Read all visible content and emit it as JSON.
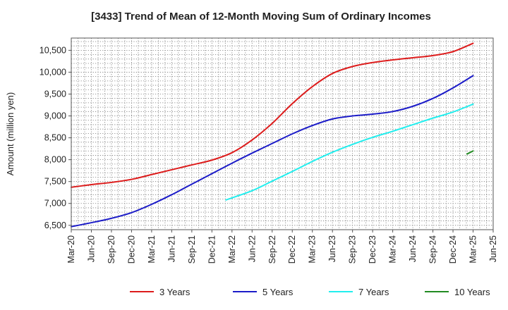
{
  "chart_data": {
    "type": "line",
    "title": "[3433]  Trend of Mean of 12-Month Moving Sum of Ordinary Incomes",
    "xlabel": "",
    "ylabel": "Amount (million yen)",
    "ylim": [
      6400,
      10780
    ],
    "yticks": [
      6500,
      7000,
      7500,
      8000,
      8500,
      9000,
      9500,
      10000,
      10500
    ],
    "ytick_labels": [
      "6,500",
      "7,000",
      "7,500",
      "8,000",
      "8,500",
      "9,000",
      "9,500",
      "10,000",
      "10,500"
    ],
    "x_categories": [
      "Mar-20",
      "Jun-20",
      "Sep-20",
      "Dec-20",
      "Mar-21",
      "Jun-21",
      "Sep-21",
      "Dec-21",
      "Mar-22",
      "Jun-22",
      "Sep-22",
      "Dec-22",
      "Mar-23",
      "Jun-23",
      "Sep-23",
      "Dec-23",
      "Mar-24",
      "Jun-24",
      "Sep-24",
      "Dec-24",
      "Mar-25",
      "Jun-25"
    ],
    "grid": true,
    "legend_position": "bottom",
    "series": [
      {
        "name": "3 Years",
        "color": "#dd1c1c",
        "points": [
          [
            0,
            7370
          ],
          [
            1,
            7430
          ],
          [
            2,
            7480
          ],
          [
            3,
            7550
          ],
          [
            4,
            7660
          ],
          [
            5,
            7770
          ],
          [
            6,
            7880
          ],
          [
            7,
            7990
          ],
          [
            8,
            8160
          ],
          [
            9,
            8450
          ],
          [
            10,
            8830
          ],
          [
            11,
            9280
          ],
          [
            12,
            9670
          ],
          [
            13,
            9970
          ],
          [
            14,
            10130
          ],
          [
            15,
            10220
          ],
          [
            16,
            10280
          ],
          [
            17,
            10330
          ],
          [
            18,
            10380
          ],
          [
            19,
            10470
          ],
          [
            20,
            10660
          ]
        ]
      },
      {
        "name": "5 Years",
        "color": "#1c1cc8",
        "points": [
          [
            0,
            6470
          ],
          [
            1,
            6560
          ],
          [
            2,
            6660
          ],
          [
            3,
            6790
          ],
          [
            4,
            6980
          ],
          [
            5,
            7200
          ],
          [
            6,
            7440
          ],
          [
            7,
            7680
          ],
          [
            8,
            7920
          ],
          [
            9,
            8150
          ],
          [
            10,
            8370
          ],
          [
            11,
            8590
          ],
          [
            12,
            8780
          ],
          [
            13,
            8930
          ],
          [
            14,
            9000
          ],
          [
            15,
            9040
          ],
          [
            16,
            9100
          ],
          [
            17,
            9220
          ],
          [
            18,
            9400
          ],
          [
            19,
            9640
          ],
          [
            20,
            9920
          ]
        ]
      },
      {
        "name": "7 Years",
        "color": "#22eeee",
        "points": [
          [
            7.7,
            7080
          ],
          [
            9,
            7290
          ],
          [
            10,
            7510
          ],
          [
            11,
            7730
          ],
          [
            12,
            7960
          ],
          [
            13,
            8170
          ],
          [
            14,
            8350
          ],
          [
            15,
            8510
          ],
          [
            16,
            8650
          ],
          [
            17,
            8800
          ],
          [
            18,
            8950
          ],
          [
            19,
            9090
          ],
          [
            20,
            9270
          ]
        ]
      },
      {
        "name": "10 Years",
        "color": "#228b22",
        "points": [
          [
            19.7,
            8130
          ],
          [
            20,
            8200
          ]
        ]
      }
    ]
  }
}
